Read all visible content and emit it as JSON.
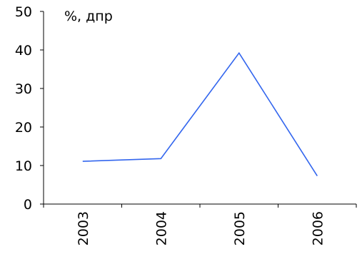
{
  "chart_data": {
    "type": "line",
    "title": "",
    "xlabel": "",
    "ylabel": "%, дпр",
    "categories": [
      "2003",
      "2004",
      "2005",
      "2006"
    ],
    "series": [
      {
        "values": [
          11.1,
          11.8,
          39.2,
          7.3
        ],
        "color": "#3366ee"
      }
    ],
    "ylim": [
      0,
      50
    ],
    "yticks": [
      "0",
      "10",
      "20",
      "30",
      "40",
      "50"
    ],
    "grid": false,
    "legend": "none"
  }
}
